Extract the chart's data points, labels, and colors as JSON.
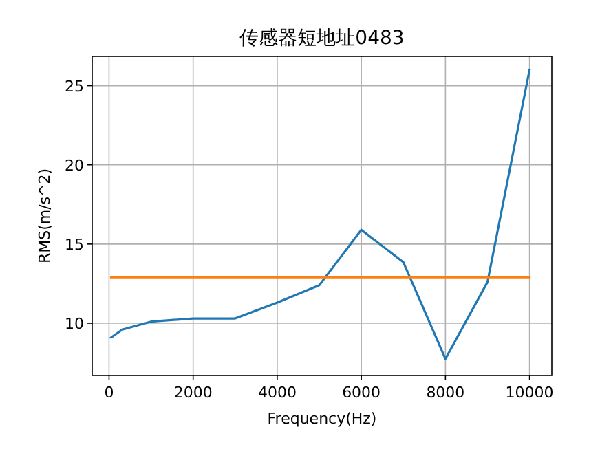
{
  "chart_data": {
    "type": "line",
    "title": "传感器短地址0483",
    "xlabel": "Frequency(Hz)",
    "ylabel": "RMS(m/s^2)",
    "x": [
      50,
      315,
      1000,
      2000,
      3000,
      4000,
      5000,
      6000,
      7000,
      8000,
      9000,
      10000
    ],
    "series": [
      {
        "color": "#1f77b4",
        "values": [
          9.1,
          9.6,
          10.1,
          10.3,
          10.3,
          11.3,
          12.4,
          15.9,
          13.85,
          7.75,
          12.6,
          26.0
        ]
      },
      {
        "color": "#ff7f0e",
        "x": [
          50,
          10000
        ],
        "values": [
          12.9,
          12.9
        ]
      }
    ],
    "xlim": [
      -400,
      10530
    ],
    "ylim": [
      6.7,
      26.85
    ],
    "xticks": [
      0,
      2000,
      4000,
      6000,
      8000,
      10000
    ],
    "yticks": [
      10,
      15,
      20,
      25
    ],
    "grid": true
  }
}
